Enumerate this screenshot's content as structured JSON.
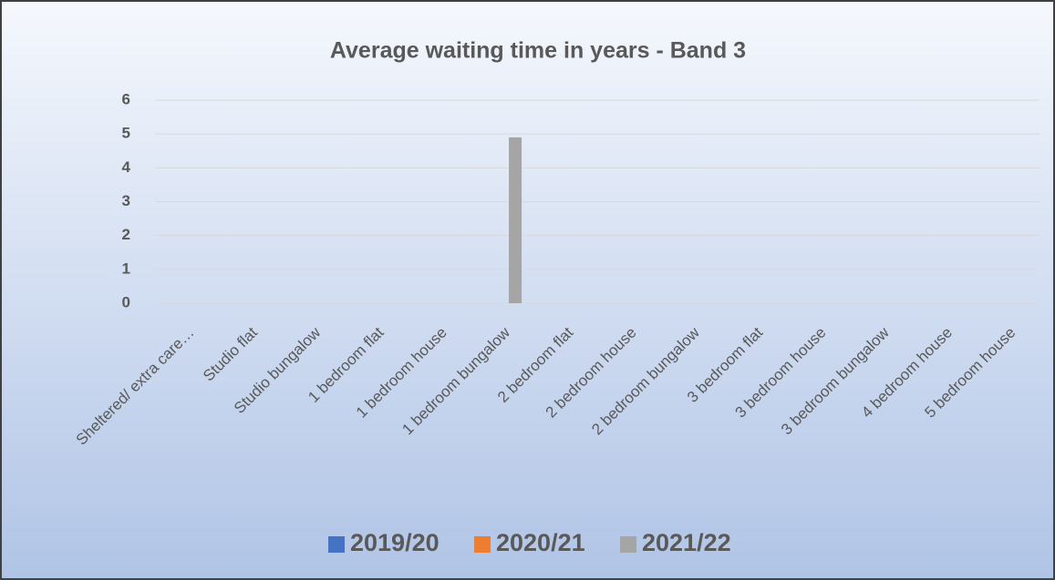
{
  "chart_data": {
    "type": "bar",
    "title": "Average  waiting time in years - Band 3",
    "categories": [
      "Sheltered/ extra care…",
      "Studio flat",
      "Studio bungalow",
      "1 bedroom flat",
      "1 bedroom house",
      "1 bedroom bungalow",
      "2 bedroom flat",
      "2 bedroom house",
      "2 bedroom bungalow",
      "3 bedroom flat",
      "3 bedroom house",
      "3 bedroom bungalow",
      "4 bedroom house",
      "5 bedroom house"
    ],
    "series": [
      {
        "name": "2019/20",
        "color": "#4472c4",
        "values": [
          null,
          null,
          null,
          null,
          null,
          null,
          null,
          null,
          null,
          null,
          null,
          null,
          null,
          null
        ]
      },
      {
        "name": "2020/21",
        "color": "#ed7d31",
        "values": [
          null,
          null,
          null,
          null,
          null,
          null,
          null,
          null,
          null,
          null,
          null,
          null,
          null,
          null
        ]
      },
      {
        "name": "2021/22",
        "color": "#a5a5a5",
        "values": [
          null,
          null,
          null,
          null,
          null,
          4.9,
          null,
          null,
          null,
          null,
          null,
          null,
          null,
          null
        ]
      }
    ],
    "ylim": [
      0,
      6
    ],
    "yticks": [
      0,
      1,
      2,
      3,
      4,
      5,
      6
    ],
    "grid": true,
    "legend": "bottom"
  }
}
